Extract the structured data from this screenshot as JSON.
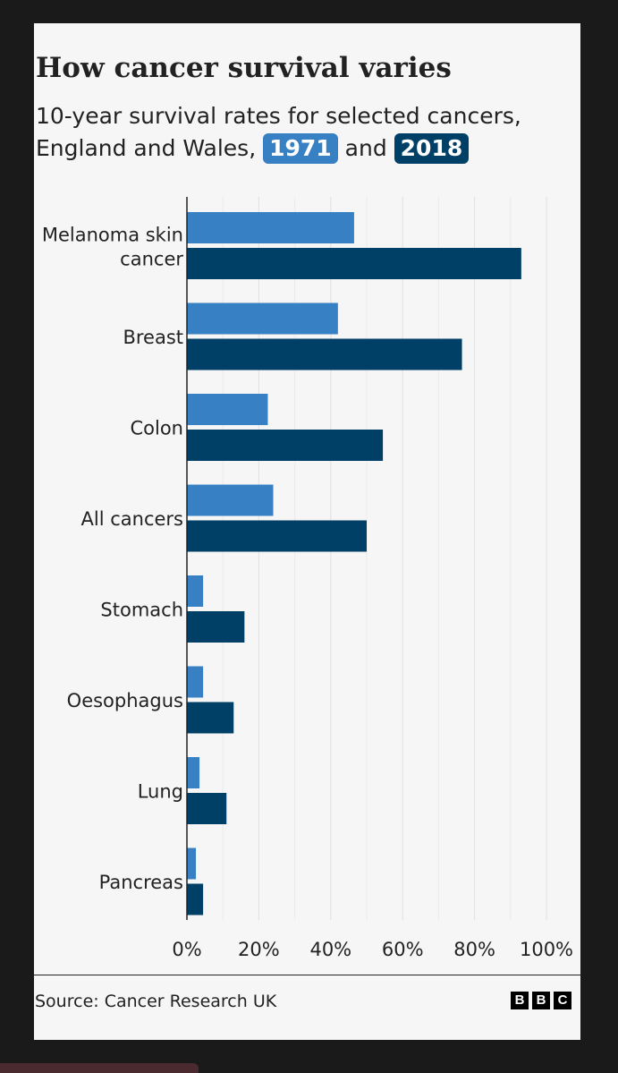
{
  "chart_data": {
    "type": "bar",
    "orientation": "horizontal",
    "title": "How cancer survival varies",
    "subtitle_text": "10-year survival rates for selected cancers, England and Wales,",
    "subtitle_conj": "and",
    "categories": [
      "Melanoma skin cancer",
      "Breast",
      "Colon",
      "All cancers",
      "Stomach",
      "Oesophagus",
      "Lung",
      "Pancreas"
    ],
    "series": [
      {
        "name": "1971",
        "color": "#3880c4",
        "values": [
          46.5,
          42,
          22.5,
          24,
          4.5,
          4.5,
          3.5,
          2.5
        ]
      },
      {
        "name": "2018",
        "color": "#003f66",
        "values": [
          93,
          76.5,
          54.5,
          50,
          16,
          13,
          11,
          4.5
        ]
      }
    ],
    "xlim": [
      0,
      100
    ],
    "xticks": [
      "0%",
      "20%",
      "40%",
      "60%",
      "80%",
      "100%"
    ],
    "grid": true,
    "source": "Source: Cancer Research UK",
    "logo": "BBC"
  }
}
